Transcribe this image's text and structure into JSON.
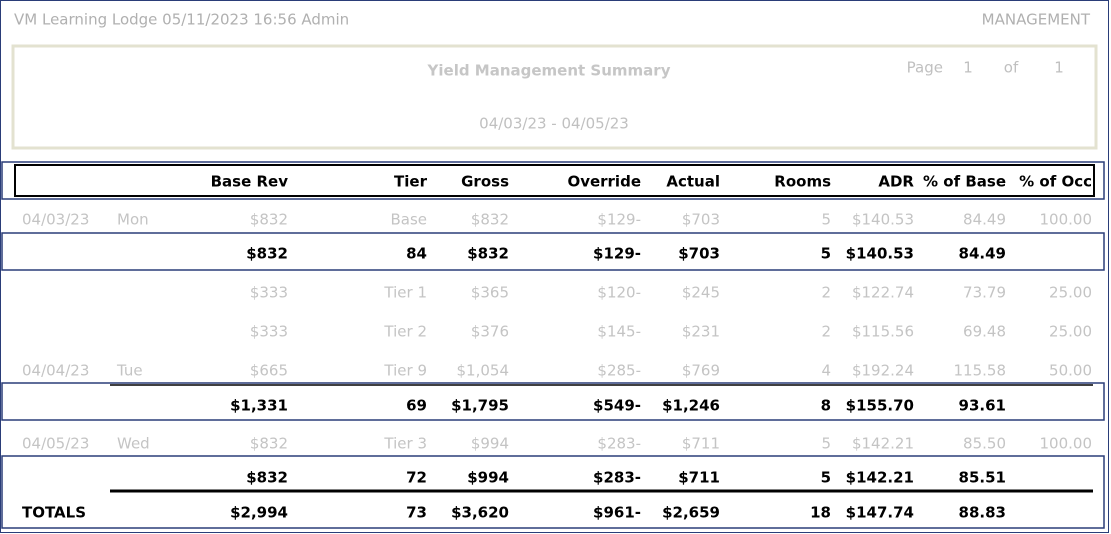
{
  "header": {
    "left": "VM Learning Lodge 05/11/2023 16:56  Admin",
    "right": "MANAGEMENT"
  },
  "report": {
    "title": "Yield Management Summary",
    "page_label": "Page",
    "page": "1",
    "of_label": "of",
    "pages": "1",
    "date_range": "04/03/23 - 04/05/23"
  },
  "table": {
    "columns": [
      null,
      null,
      "Base Rev",
      "Tier",
      "Gross",
      "Override",
      "Actual",
      "Rooms",
      "ADR",
      "% of Base",
      "% of Occ"
    ],
    "rows": [
      {
        "kind": "detail",
        "cells": [
          "04/03/23",
          "Mon",
          "$832",
          "Base",
          "$832",
          "$129-",
          "$703",
          "5",
          "$140.53",
          "84.49",
          "100.00"
        ]
      },
      {
        "kind": "subtotal",
        "cells": [
          null,
          null,
          "$832",
          "84",
          "$832",
          "$129-",
          "$703",
          "5",
          "$140.53",
          "84.49",
          null
        ]
      },
      {
        "kind": "detail",
        "cells": [
          null,
          null,
          "$333",
          "Tier 1",
          "$365",
          "$120-",
          "$245",
          "2",
          "$122.74",
          "73.79",
          "25.00"
        ]
      },
      {
        "kind": "detail",
        "cells": [
          null,
          null,
          "$333",
          "Tier 2",
          "$376",
          "$145-",
          "$231",
          "2",
          "$115.56",
          "69.48",
          "25.00"
        ]
      },
      {
        "kind": "detail",
        "cells": [
          "04/04/23",
          "Tue",
          "$665",
          "Tier 9",
          "$1,054",
          "$285-",
          "$769",
          "4",
          "$192.24",
          "115.58",
          "50.00"
        ]
      },
      {
        "kind": "subtotal",
        "cells": [
          null,
          null,
          "$1,331",
          "69",
          "$1,795",
          "$549-",
          "$1,246",
          "8",
          "$155.70",
          "93.61",
          null
        ]
      },
      {
        "kind": "detail",
        "cells": [
          "04/05/23",
          "Wed",
          "$832",
          "Tier 3",
          "$994",
          "$283-",
          "$711",
          "5",
          "$142.21",
          "85.50",
          "100.00"
        ]
      },
      {
        "kind": "subtotal",
        "cells": [
          null,
          null,
          "$832",
          "72",
          "$994",
          "$283-",
          "$711",
          "5",
          "$142.21",
          "85.51",
          null
        ]
      },
      {
        "kind": "total",
        "cells": [
          "TOTALS",
          null,
          "$2,994",
          "73",
          "$3,620",
          "$961-",
          "$2,659",
          "18",
          "$147.74",
          "88.83",
          null
        ]
      }
    ]
  }
}
